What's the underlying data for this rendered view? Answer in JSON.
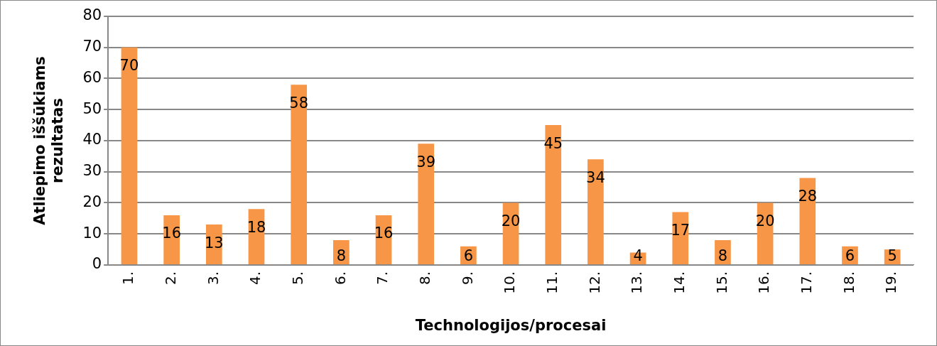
{
  "chart_data": {
    "type": "bar",
    "xlabel": "Technologijos/procesai",
    "ylabel": "Atliepimo iššūkiams rezultatas",
    "categories": [
      "1.",
      "2.",
      "3.",
      "4.",
      "5.",
      "6.",
      "7.",
      "8.",
      "9.",
      "10.",
      "11.",
      "12.",
      "13.",
      "14.",
      "15.",
      "16.",
      "17.",
      "18.",
      "19."
    ],
    "values": [
      70,
      16,
      13,
      18,
      58,
      8,
      16,
      39,
      6,
      20,
      45,
      34,
      4,
      17,
      8,
      20,
      28,
      6,
      5
    ],
    "color": "#f79646",
    "ylim": [
      0,
      80
    ],
    "yticks": [
      0,
      10,
      20,
      30,
      40,
      50,
      60,
      70,
      80
    ],
    "grid": "y",
    "legend": false,
    "data_labels": true
  }
}
